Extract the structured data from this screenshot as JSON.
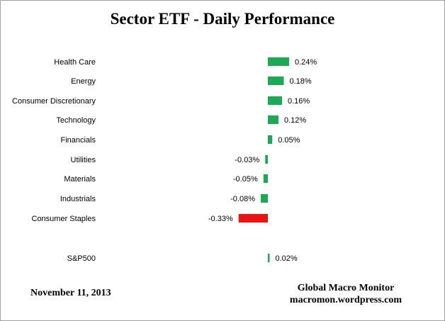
{
  "chart_data": {
    "type": "bar",
    "orientation": "horizontal",
    "title": "Sector ETF - Daily Performance",
    "xlabel": "",
    "ylabel": "",
    "categories": [
      "Health Care",
      "Energy",
      "Consumer Discretionary",
      "Technology",
      "Financials",
      "Utilities",
      "Materials",
      "Industrials",
      "Consumer Staples",
      "S&P500"
    ],
    "values": [
      0.24,
      0.18,
      0.16,
      0.12,
      0.05,
      -0.03,
      -0.05,
      -0.08,
      -0.33,
      0.02
    ],
    "value_labels": [
      "0.24%",
      "0.18%",
      "0.16%",
      "0.12%",
      "0.05%",
      "-0.03%",
      "-0.05%",
      "-0.08%",
      "-0.33%",
      "0.02%"
    ],
    "bar_colors": [
      "#1aab52",
      "#1aab52",
      "#1aab52",
      "#1aab52",
      "#1aab52",
      "#1aab52",
      "#1aab52",
      "#1aab52",
      "#ee1111",
      "#1aab52"
    ],
    "grid": false,
    "legend": "none"
  },
  "footer": {
    "date": "November 11, 2013",
    "source_name": "Global Macro Monitor",
    "source_url": "macromon.wordpress.com"
  }
}
